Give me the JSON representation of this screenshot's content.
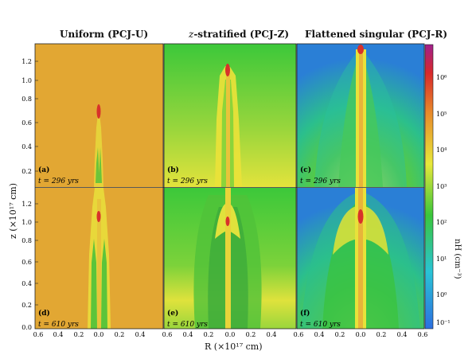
{
  "figure": {
    "columns": [
      {
        "title": "Uniform (PCJ-U)"
      },
      {
        "title_italic": "z",
        "title_rest": "-stratified (PCJ-Z)"
      },
      {
        "title": "Flattened singular (PCJ-R)"
      }
    ],
    "panels": [
      {
        "tag": "(a)",
        "time": "t = 296 yrs"
      },
      {
        "tag": "(b)",
        "time": "t = 296 yrs"
      },
      {
        "tag": "(c)",
        "time": "t = 296 yrs"
      },
      {
        "tag": "(d)",
        "time": "t = 610 yrs"
      },
      {
        "tag": "(e)",
        "time": "t = 610 yrs"
      },
      {
        "tag": "(f)",
        "time": "t = 610 yrs"
      }
    ],
    "y_axis_label": "z (×10¹⁷ cm)",
    "x_axis_label": "R (×10¹⁷ cm)",
    "colorbar_label": "nH (cm⁻³)",
    "y_ticks_top": [
      "0.2",
      "0.4",
      "0.6",
      "0.8",
      "1.0",
      "1.2"
    ],
    "y_ticks_bottom": [
      "0.0",
      "0.2",
      "0.4",
      "0.6",
      "0.8",
      "1.0",
      "1.2"
    ],
    "x_ticks": [
      "0.6",
      "0.4",
      "0.2",
      "0.0",
      "0.2",
      "0.4",
      "0.6"
    ],
    "colorbar_ticks": [
      "10⁶",
      "10⁵",
      "10⁴",
      "10³",
      "10²",
      "10¹",
      "10⁰",
      "10⁻¹"
    ]
  },
  "chart_data": {
    "type": "heatmap",
    "xlabel": "R (×10¹⁷ cm)",
    "ylabel": "z (×10¹⁷ cm)",
    "xlim": [
      -0.6,
      0.6
    ],
    "ylim": [
      0.0,
      1.3
    ],
    "colorbar": {
      "label": "nH (cm⁻³)",
      "scale": "log",
      "range": [
        0.05,
        3000000
      ]
    },
    "colors": {
      "uniform": "#e2a733",
      "green": "#46c73c",
      "blue": "#2c8cd2",
      "yellow": "#e6e63c",
      "red": "#d8322a"
    }
  }
}
